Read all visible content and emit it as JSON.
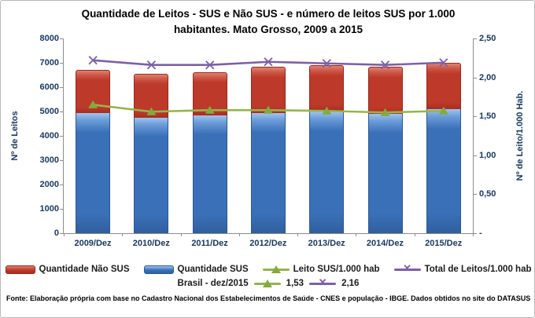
{
  "title": "Quantidade de Leitos - SUS e Não SUS - e número de leitos SUS por 1.000 habitantes. Mato Grosso, 2009 a 2015",
  "footer": "Fonte: Elaboração própria com base no  Cadastro Nacional dos Estabelecimentos de Saúde - CNES e população - IBGE. Dados obtidos no site do DATASUS",
  "chart_data": {
    "type": "combo-stacked-bar-line",
    "categories": [
      "2009/Dez",
      "2010/Dez",
      "2011/Dez",
      "2012/Dez",
      "2013/Dez",
      "2014/Dez",
      "2015/Dez"
    ],
    "series": [
      {
        "name": "Quantidade SUS",
        "type": "bar",
        "axis": "left",
        "color": "#3a70b8",
        "values": [
          4950,
          4750,
          4850,
          4950,
          5000,
          4900,
          5100
        ]
      },
      {
        "name": "Quantidade Não SUS",
        "type": "bar",
        "axis": "left",
        "color": "#bd392a",
        "values": [
          1750,
          1800,
          1750,
          1900,
          1900,
          1950,
          1900
        ]
      },
      {
        "name": "Leito SUS/1.000 hab",
        "type": "line",
        "marker": "triangle",
        "axis": "right",
        "color": "#94b54d",
        "values": [
          1.65,
          1.56,
          1.58,
          1.58,
          1.57,
          1.55,
          1.57
        ]
      },
      {
        "name": "Total de Leitos/1.000 hab",
        "type": "line",
        "marker": "x",
        "axis": "right",
        "color": "#7c60a5",
        "values": [
          2.22,
          2.16,
          2.16,
          2.2,
          2.18,
          2.16,
          2.19
        ]
      }
    ],
    "left_axis": {
      "label": "Nº de Leitos",
      "min": 0,
      "max": 8000,
      "step": 1000,
      "tick_labels": [
        "8000",
        "7000",
        "6000",
        "5000",
        "4000",
        "3000",
        "2000",
        "1000",
        "0"
      ]
    },
    "right_axis": {
      "label": "Nº de Leito/1.000 Hab.",
      "min": 0,
      "max": 2.5,
      "step": 0.5,
      "tick_labels": [
        "2,50",
        "2,00",
        "1,50",
        "1,00",
        "0,50",
        "-"
      ]
    },
    "grid": false,
    "legend_position": "bottom",
    "benchmark": {
      "label": "Brasil -  dez/2015",
      "leito_sus_value": "1,53",
      "total_value": "2,16"
    }
  },
  "legend": {
    "nao_sus": "Quantidade Não SUS",
    "sus": "Quantidade SUS",
    "leito_sus": "Leito SUS/1.000 hab",
    "total_leitos": "Total de Leitos/1.000 hab"
  }
}
